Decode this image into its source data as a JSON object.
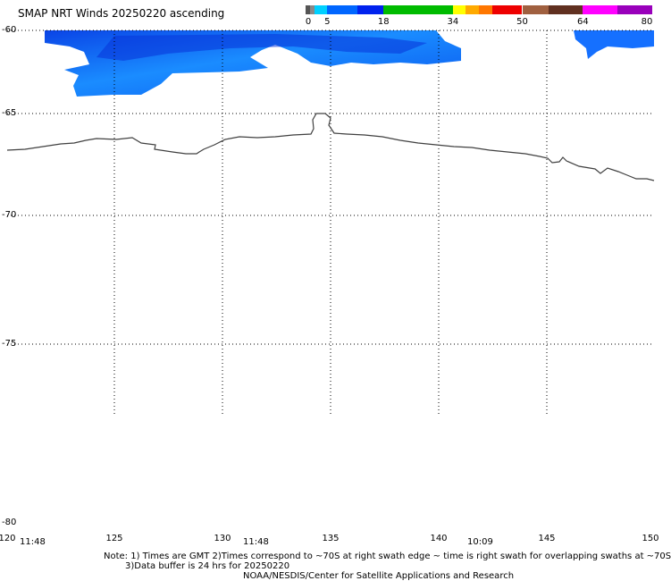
{
  "title": "SMAP NRT Winds 20250220 ascending",
  "colorbar": {
    "labels": [
      "0",
      "5",
      "18",
      "34",
      "50",
      "64",
      "80"
    ],
    "segments": [
      {
        "from": 0,
        "to": 1,
        "color": "#555555"
      },
      {
        "from": 1,
        "to": 2,
        "color": "#888888"
      },
      {
        "from": 2,
        "to": 5,
        "color": "#00d0ff"
      },
      {
        "from": 5,
        "to": 12,
        "color": "#0066ff"
      },
      {
        "from": 12,
        "to": 18,
        "color": "#0022ee"
      },
      {
        "from": 18,
        "to": 34,
        "color": "#00bb00"
      },
      {
        "from": 34,
        "to": 37,
        "color": "#ffff00"
      },
      {
        "from": 37,
        "to": 40,
        "color": "#ffaa00"
      },
      {
        "from": 40,
        "to": 43,
        "color": "#ff7700"
      },
      {
        "from": 43,
        "to": 50,
        "color": "#ee0000"
      },
      {
        "from": 50,
        "to": 56,
        "color": "#a06040"
      },
      {
        "from": 56,
        "to": 64,
        "color": "#603020"
      },
      {
        "from": 64,
        "to": 72,
        "color": "#ff00ff"
      },
      {
        "from": 72,
        "to": 80,
        "color": "#9900bb"
      }
    ]
  },
  "axes": {
    "lat_labels": [
      "-60",
      "-65",
      "-70",
      "-75",
      "-80"
    ],
    "lon_labels": [
      "120",
      "125",
      "130",
      "135",
      "140",
      "145",
      "150"
    ]
  },
  "swath_times": [
    "11:48",
    "11:48",
    "10:09"
  ],
  "notes": {
    "line1": "Note: 1) Times are GMT 2)Times correspond to ~70S at right swath edge ~ time is right swath for overlapping swaths at ~70S",
    "line2": "3)Data buffer is 24 hrs for 20250220",
    "line3": "NOAA/NESDIS/Center for Satellite Applications and Research"
  },
  "colors": {
    "wind_light": "#1a8cff",
    "wind_mid": "#0a55ee",
    "wind_dark": "#0833d8",
    "coastline": "#404040",
    "grid": "#000000"
  }
}
